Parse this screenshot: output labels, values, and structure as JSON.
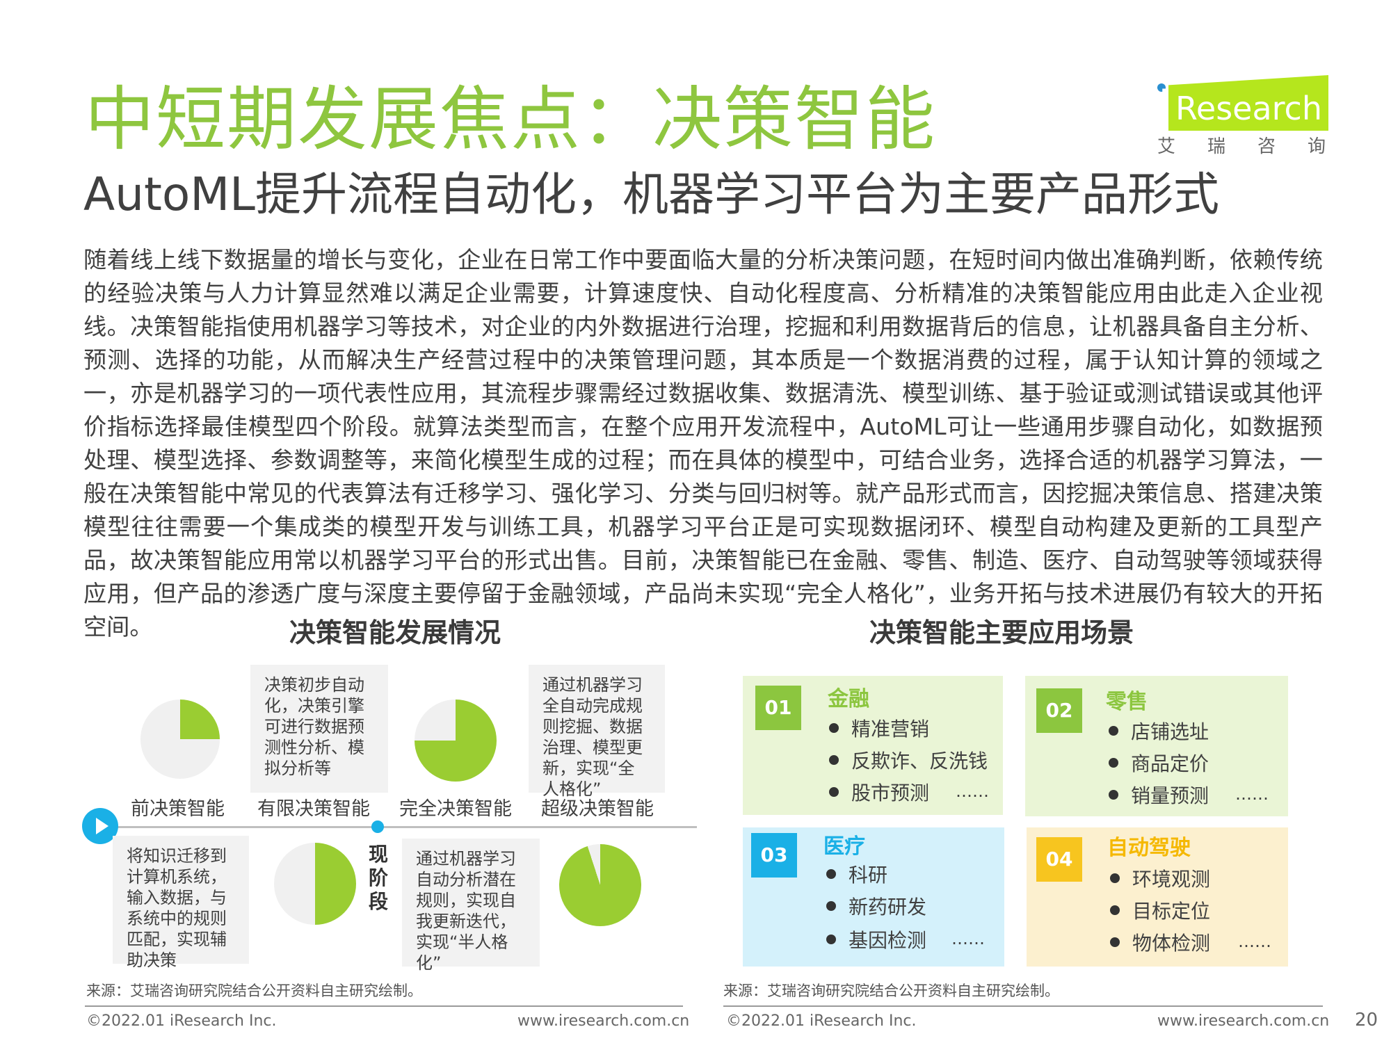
{
  "header": {
    "title": "中短期发展焦点：决策智能",
    "subtitle": "AutoML提升流程自动化，机器学习平台为主要产品形式",
    "logo_text": "Research",
    "logo_i": "i",
    "logo_cn": "艾瑞咨询"
  },
  "body_text": "随着线上线下数据量的增长与变化，企业在日常工作中要面临大量的分析决策问题，在短时间内做出准确判断，依赖传统的经验决策与人力计算显然难以满足企业需要，计算速度快、自动化程度高、分析精准的决策智能应用由此走入企业视线。决策智能指使用机器学习等技术，对企业的内外数据进行治理，挖掘和利用数据背后的信息，让机器具备自主分析、预测、选择的功能，从而解决生产经营过程中的决策管理问题，其本质是一个数据消费的过程，属于认知计算的领域之一，亦是机器学习的一项代表性应用，其流程步骤需经过数据收集、数据清洗、模型训练、基于验证或测试错误或其他评价指标选择最佳模型四个阶段。就算法类型而言，在整个应用开发流程中，AutoML可让一些通用步骤自动化，如数据预处理、模型选择、参数调整等，来简化模型生成的过程；而在具体的模型中，可结合业务，选择合适的机器学习算法，一般在决策智能中常见的代表算法有迁移学习、强化学习、分类与回归树等。就产品形式而言，因挖掘决策信息、搭建决策模型往往需要一个集成类的模型开发与训练工具，机器学习平台正是可实现数据闭环、模型自动构建及更新的工具型产品，故决策智能应用常以机器学习平台的形式出售。目前，决策智能已在金融、零售、制造、医疗、自动驾驶等领域获得应用，但产品的渗透广度与深度主要停留于金融领域，产品尚未实现“完全人格化”，业务开拓与技术进展仍有较大的开拓空间。",
  "development": {
    "title": "决策智能发展情况",
    "current_stage_label": "现阶段",
    "stages": [
      {
        "label": "前决策智能",
        "fill_fraction": 0.25,
        "desc": "将知识迁移到计算机系统，输入数据，与系统中的规则匹配，实现辅助决策"
      },
      {
        "label": "有限决策智能",
        "fill_fraction": 0.5,
        "desc": "决策初步自动化，决策引擎可进行数据预测性分析、模拟分析等"
      },
      {
        "label": "完全决策智能",
        "fill_fraction": 0.75,
        "desc": "通过机器学习自动分析潜在规则，实现自我更新迭代，实现“半人格化”"
      },
      {
        "label": "超级决策智能",
        "fill_fraction": 0.95,
        "desc": "通过机器学习全自动完成规则挖掘、数据治理、模型更新，实现“全人格化”"
      }
    ],
    "source": "来源：艾瑞咨询研究院结合公开资料自主研究绘制。"
  },
  "applications": {
    "title": "决策智能主要应用场景",
    "cards": [
      {
        "num": "01",
        "title": "金融",
        "items": [
          "精准营销",
          "反欺诈、反洗钱",
          "股市预测"
        ],
        "more": "……",
        "bg": "#eaf5d6",
        "badge": "#8cc63f",
        "title_color": "#8cc63f"
      },
      {
        "num": "02",
        "title": "零售",
        "items": [
          "店铺选址",
          "商品定价",
          "销量预测"
        ],
        "more": "……",
        "bg": "#eaf5d6",
        "badge": "#8cc63f",
        "title_color": "#8cc63f"
      },
      {
        "num": "03",
        "title": "医疗",
        "items": [
          "科研",
          "新药研发",
          "基因检测"
        ],
        "more": "……",
        "bg": "#d4f1fb",
        "badge": "#1ab0e6",
        "title_color": "#1ab0e6"
      },
      {
        "num": "04",
        "title": "自动驾驶",
        "items": [
          "环境观测",
          "目标定位",
          "物体检测"
        ],
        "more": "……",
        "bg": "#fcf0cf",
        "badge": "#f7c51f",
        "title_color": "#f5b800"
      }
    ],
    "source": "来源：艾瑞咨询研究院结合公开资料自主研究绘制。"
  },
  "footer": {
    "copyright": "©2022.01 iResearch Inc.",
    "website": "www.iresearch.com.cn",
    "page_number": "20"
  },
  "colors": {
    "accent_green": "#8ec63f",
    "pie_green": "#9acd32",
    "pie_gray": "#f0f0f0",
    "timeline_blue": "#1ab0e6"
  }
}
